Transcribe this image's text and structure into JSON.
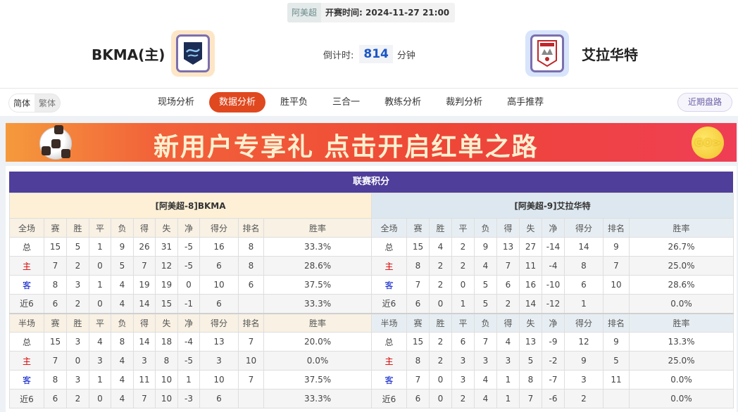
{
  "header": {
    "league": "阿美超",
    "kickoff_label": "开赛时间:",
    "kickoff": "2024-11-27 21:00",
    "home": {
      "name": "BKMA(主)"
    },
    "away": {
      "name": "艾拉华特"
    },
    "countdown_label": "倒计时:",
    "countdown_value": "814",
    "countdown_unit": "分钟"
  },
  "nav": {
    "lang": [
      "简体",
      "繁体"
    ],
    "tabs": [
      "现场分析",
      "数据分析",
      "胜平负",
      "三合一",
      "教练分析",
      "裁判分析",
      "高手推荐"
    ],
    "active_tab": "数据分析",
    "recent": "近期盘路"
  },
  "banner": {
    "text": "新用户专享礼  点击开启红单之路",
    "go": "GO>"
  },
  "standings": {
    "title": "联赛积分",
    "columns_full": [
      "全场",
      "赛",
      "胜",
      "平",
      "负",
      "得",
      "失",
      "净",
      "得分",
      "排名",
      "胜率"
    ],
    "columns_half": [
      "半场",
      "赛",
      "胜",
      "平",
      "负",
      "得",
      "失",
      "净",
      "得分",
      "排名",
      "胜率"
    ],
    "home": {
      "title": "[阿美超-8]BKMA",
      "full": [
        [
          "总",
          "15",
          "5",
          "1",
          "9",
          "26",
          "31",
          "-5",
          "16",
          "8",
          "33.3%"
        ],
        [
          "主",
          "7",
          "2",
          "0",
          "5",
          "7",
          "12",
          "-5",
          "6",
          "8",
          "28.6%"
        ],
        [
          "客",
          "8",
          "3",
          "1",
          "4",
          "19",
          "19",
          "0",
          "10",
          "6",
          "37.5%"
        ],
        [
          "近6",
          "6",
          "2",
          "0",
          "4",
          "14",
          "15",
          "-1",
          "6",
          "",
          "33.3%"
        ]
      ],
      "half": [
        [
          "总",
          "15",
          "3",
          "4",
          "8",
          "14",
          "18",
          "-4",
          "13",
          "7",
          "20.0%"
        ],
        [
          "主",
          "7",
          "0",
          "3",
          "4",
          "3",
          "8",
          "-5",
          "3",
          "10",
          "0.0%"
        ],
        [
          "客",
          "8",
          "3",
          "1",
          "4",
          "11",
          "10",
          "1",
          "10",
          "7",
          "37.5%"
        ],
        [
          "近6",
          "6",
          "2",
          "0",
          "4",
          "7",
          "10",
          "-3",
          "6",
          "",
          "33.3%"
        ]
      ]
    },
    "away": {
      "title": "[阿美超-9]艾拉华特",
      "full": [
        [
          "总",
          "15",
          "4",
          "2",
          "9",
          "13",
          "27",
          "-14",
          "14",
          "9",
          "26.7%"
        ],
        [
          "主",
          "8",
          "2",
          "2",
          "4",
          "7",
          "11",
          "-4",
          "8",
          "7",
          "25.0%"
        ],
        [
          "客",
          "7",
          "2",
          "0",
          "5",
          "6",
          "16",
          "-10",
          "6",
          "10",
          "28.6%"
        ],
        [
          "近6",
          "6",
          "0",
          "1",
          "5",
          "2",
          "14",
          "-12",
          "1",
          "",
          "0.0%"
        ]
      ],
      "half": [
        [
          "总",
          "15",
          "2",
          "6",
          "7",
          "4",
          "13",
          "-9",
          "12",
          "9",
          "13.3%"
        ],
        [
          "主",
          "8",
          "2",
          "3",
          "3",
          "3",
          "5",
          "-2",
          "9",
          "5",
          "25.0%"
        ],
        [
          "客",
          "7",
          "0",
          "3",
          "4",
          "1",
          "8",
          "-7",
          "3",
          "11",
          "0.0%"
        ],
        [
          "近6",
          "6",
          "0",
          "2",
          "4",
          "1",
          "7",
          "-6",
          "2",
          "",
          "0.0%"
        ]
      ]
    }
  }
}
